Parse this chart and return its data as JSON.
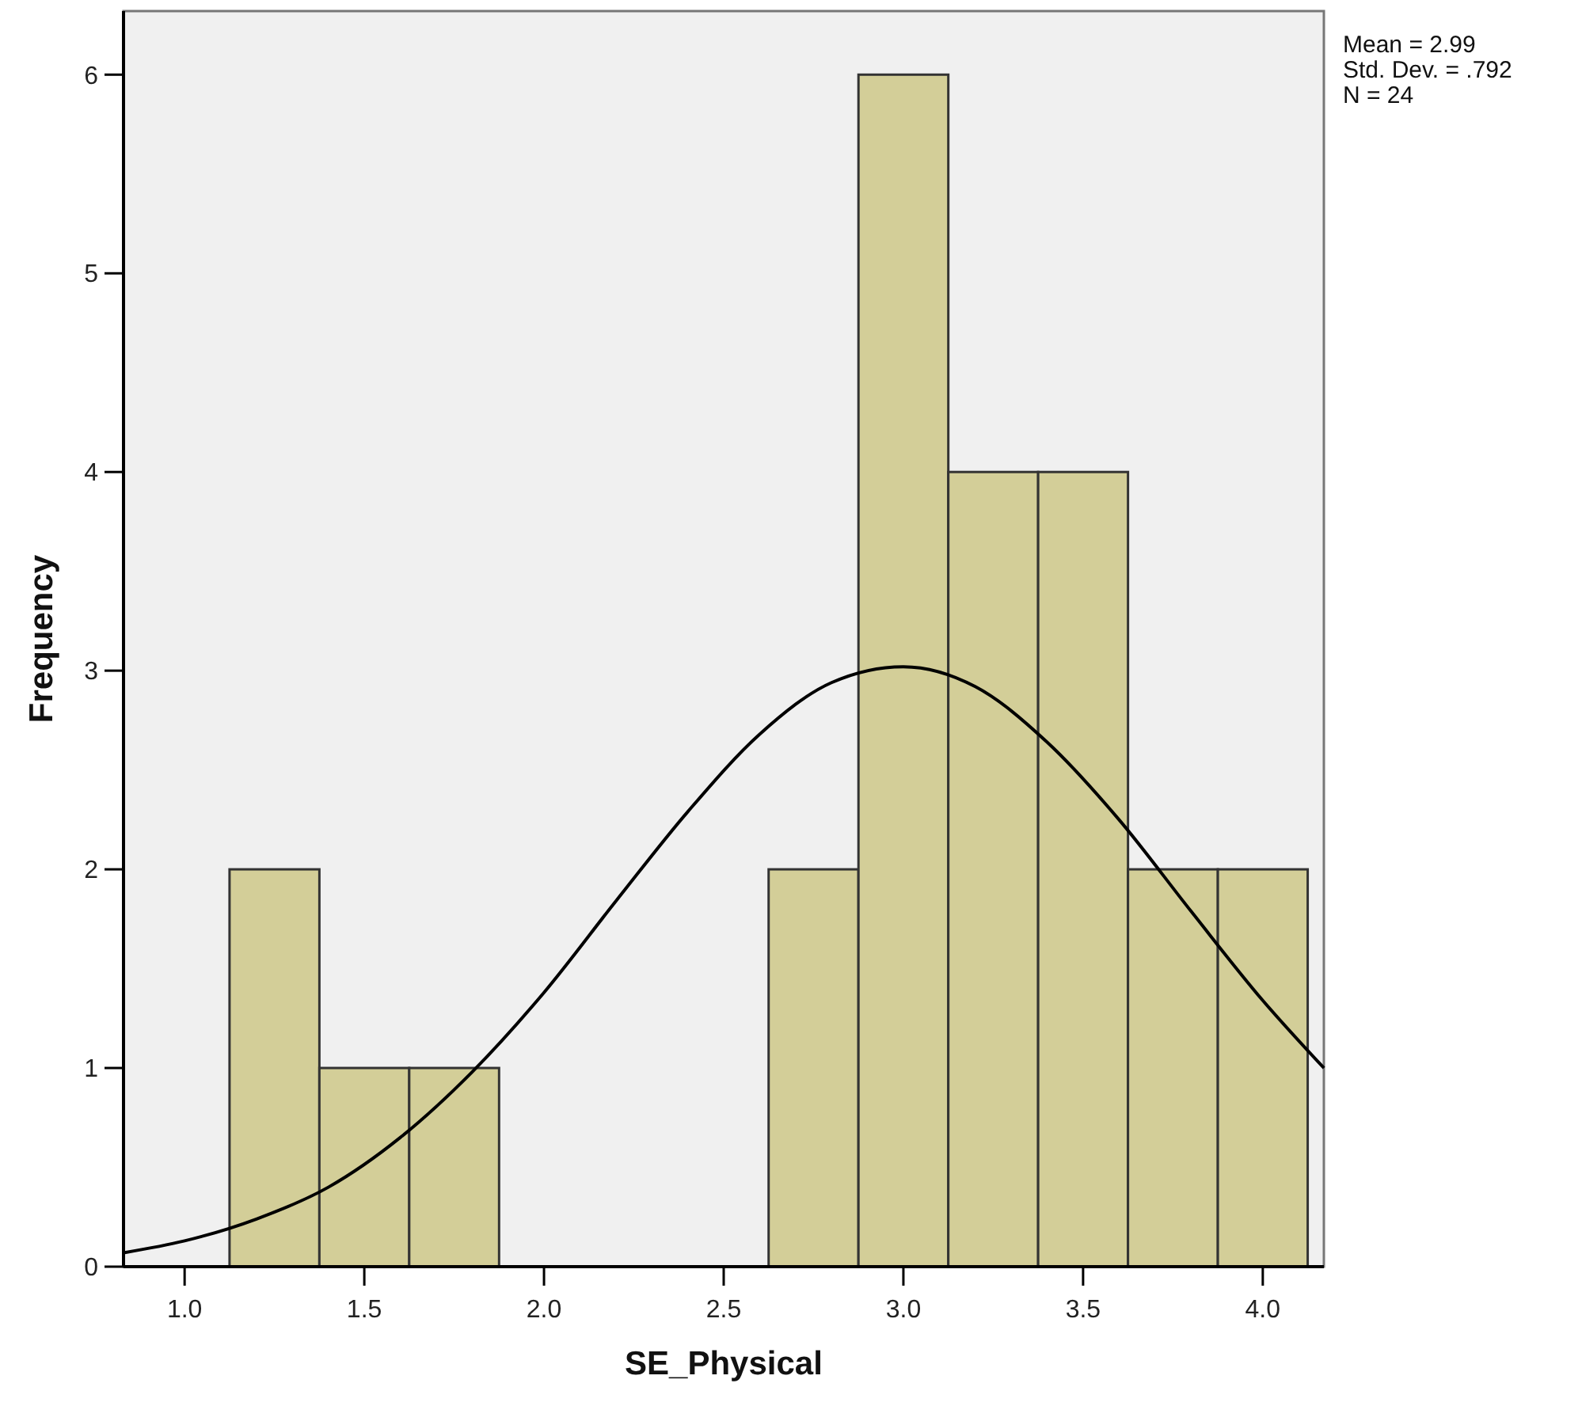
{
  "chart_data": {
    "type": "histogram",
    "xlabel": "SE_Physical",
    "ylabel": "Frequency",
    "annotations": [
      "Mean = 2.99",
      "Std. Dev. = .792",
      "N = 24"
    ],
    "bins": [
      1.125,
      1.375,
      1.625,
      1.875,
      2.125,
      2.375,
      2.625,
      2.875,
      3.125,
      3.375,
      3.625,
      3.875,
      4.125
    ],
    "values": [
      2,
      1,
      1,
      0,
      0,
      0,
      2,
      6,
      4,
      4,
      2,
      2
    ],
    "color": "#d3ce98",
    "series": [
      {
        "type": "line",
        "color": "#000000",
        "x": [
          0.83,
          1.0,
          1.2,
          1.4,
          1.6,
          1.8,
          2.0,
          2.2,
          2.4,
          2.6,
          2.8,
          3.0,
          3.2,
          3.4,
          3.6,
          3.8,
          4.0,
          4.17
        ],
        "values": [
          0.07,
          0.13,
          0.24,
          0.4,
          0.65,
          0.98,
          1.38,
          1.84,
          2.29,
          2.68,
          2.94,
          3.02,
          2.92,
          2.64,
          2.25,
          1.79,
          1.34,
          1.0
        ]
      }
    ],
    "xlim": [
      0.83,
      4.17
    ],
    "ylim": [
      0,
      6.32
    ],
    "xticks": [
      {
        "value": 1,
        "label": "1.0"
      },
      {
        "value": 1.5,
        "label": "1.5"
      },
      {
        "value": 2,
        "label": "2.0"
      },
      {
        "value": 2.5,
        "label": "2.5"
      },
      {
        "value": 3,
        "label": "3.0"
      },
      {
        "value": 3.5,
        "label": "3.5"
      },
      {
        "value": 4,
        "label": "4.0"
      }
    ],
    "yticks": [
      0,
      1,
      2,
      3,
      4,
      5,
      6
    ]
  }
}
